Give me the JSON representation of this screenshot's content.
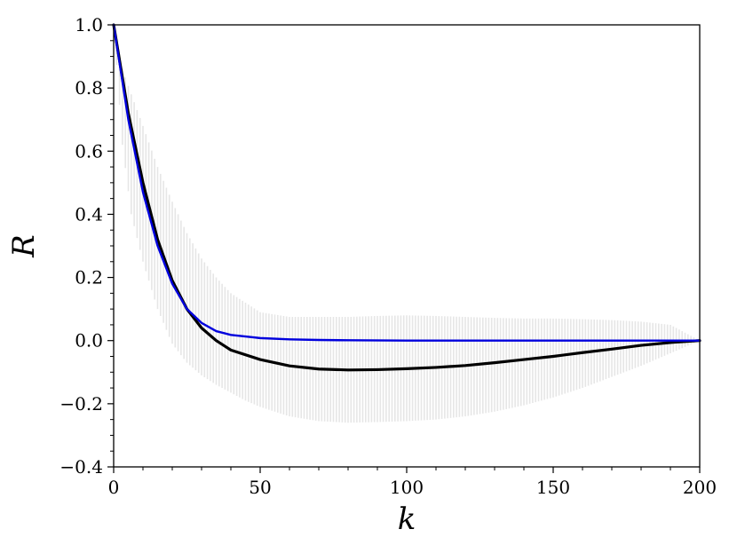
{
  "chart_data": {
    "type": "line",
    "title": "",
    "xlabel": "k",
    "ylabel": "R",
    "xlim": [
      0,
      200
    ],
    "ylim": [
      -0.4,
      1.0
    ],
    "x_ticks": [
      0,
      50,
      100,
      150,
      200
    ],
    "x_tick_labels": [
      "0",
      "50",
      "100",
      "150",
      "200"
    ],
    "y_ticks": [
      -0.4,
      -0.2,
      0.0,
      0.2,
      0.4,
      0.6,
      0.8,
      1.0
    ],
    "y_tick_labels": [
      "−0.4",
      "−0.2",
      "0.0",
      "0.2",
      "0.4",
      "0.6",
      "0.8",
      "1.0"
    ],
    "grid": false,
    "legend": "none",
    "series": [
      {
        "color": "#000000",
        "style": "solid-thick",
        "x": [
          0,
          5,
          10,
          15,
          20,
          25,
          30,
          35,
          40,
          50,
          60,
          70,
          80,
          90,
          100,
          110,
          120,
          130,
          140,
          150,
          160,
          170,
          180,
          190,
          200
        ],
        "y": [
          1.0,
          0.72,
          0.5,
          0.32,
          0.19,
          0.1,
          0.04,
          0.0,
          -0.03,
          -0.06,
          -0.08,
          -0.09,
          -0.093,
          -0.092,
          -0.089,
          -0.085,
          -0.079,
          -0.07,
          -0.06,
          -0.05,
          -0.038,
          -0.027,
          -0.015,
          -0.006,
          0.0
        ]
      },
      {
        "color": "#0000dd",
        "style": "solid",
        "x": [
          0,
          5,
          10,
          15,
          20,
          25,
          30,
          35,
          40,
          50,
          60,
          70,
          80,
          100,
          150,
          200
        ],
        "y": [
          1.0,
          0.7,
          0.47,
          0.3,
          0.18,
          0.1,
          0.056,
          0.03,
          0.018,
          0.008,
          0.004,
          0.002,
          0.001,
          0.0,
          0.0,
          0.0
        ]
      }
    ],
    "error_band": {
      "color": "#e6e6e6",
      "x": [
        0,
        3,
        6,
        10,
        15,
        20,
        25,
        30,
        35,
        40,
        45,
        50,
        60,
        70,
        80,
        90,
        100,
        110,
        120,
        130,
        140,
        150,
        160,
        170,
        180,
        190,
        200
      ],
      "lower": [
        1.0,
        0.62,
        0.4,
        0.25,
        0.1,
        -0.01,
        -0.07,
        -0.11,
        -0.14,
        -0.165,
        -0.19,
        -0.21,
        -0.24,
        -0.255,
        -0.26,
        -0.258,
        -0.255,
        -0.25,
        -0.24,
        -0.225,
        -0.205,
        -0.18,
        -0.15,
        -0.115,
        -0.08,
        -0.04,
        0.0
      ],
      "upper": [
        1.0,
        0.86,
        0.78,
        0.68,
        0.55,
        0.44,
        0.34,
        0.26,
        0.2,
        0.15,
        0.12,
        0.09,
        0.075,
        0.075,
        0.075,
        0.078,
        0.08,
        0.078,
        0.075,
        0.072,
        0.07,
        0.07,
        0.068,
        0.065,
        0.06,
        0.05,
        0.0
      ]
    }
  }
}
